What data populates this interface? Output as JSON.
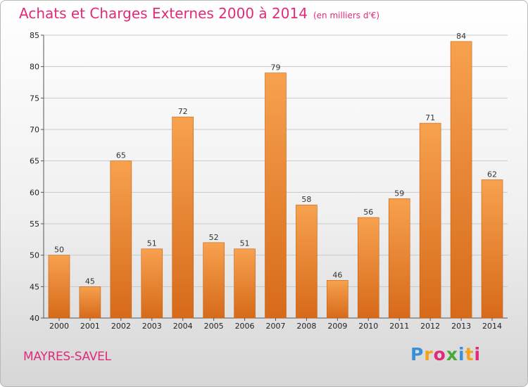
{
  "header": {
    "title": "Achats et Charges Externes 2000 à 2014",
    "subtitle": "(en milliers d'€)"
  },
  "footer": {
    "commune": "MAYRES-SAVEL",
    "logo_text": "Proxiti"
  },
  "colors": {
    "accent": "#e02a7a",
    "bar_light": "#f7a14e",
    "bar_dark": "#d66a1a"
  },
  "chart_data": {
    "type": "bar",
    "title": "Achats et Charges Externes 2000 à 2014",
    "subtitle": "(en milliers d'€)",
    "xlabel": "",
    "ylabel": "",
    "categories": [
      "2000",
      "2001",
      "2002",
      "2003",
      "2004",
      "2005",
      "2006",
      "2007",
      "2008",
      "2009",
      "2010",
      "2011",
      "2012",
      "2013",
      "2014"
    ],
    "values": [
      50,
      45,
      65,
      51,
      72,
      52,
      51,
      79,
      58,
      46,
      56,
      59,
      71,
      84,
      62
    ],
    "ylim": [
      40,
      85
    ],
    "yticks": [
      40,
      45,
      50,
      55,
      60,
      65,
      70,
      75,
      80,
      85
    ],
    "grid": true,
    "legend": "none"
  }
}
